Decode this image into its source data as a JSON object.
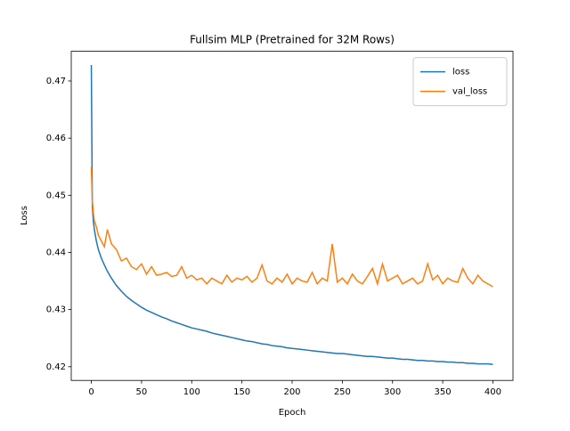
{
  "chart_data": {
    "type": "line",
    "title": "Fullsim MLP (Pretrained for 32M Rows)",
    "x_label": "Epoch",
    "y_label": "Loss",
    "x": [
      0,
      1,
      2,
      3,
      5,
      7,
      10,
      13,
      16,
      20,
      25,
      30,
      35,
      40,
      45,
      50,
      55,
      60,
      65,
      70,
      75,
      80,
      85,
      90,
      95,
      100,
      105,
      110,
      115,
      120,
      125,
      130,
      135,
      140,
      145,
      150,
      155,
      160,
      165,
      170,
      175,
      180,
      185,
      190,
      195,
      200,
      205,
      210,
      215,
      220,
      225,
      230,
      235,
      240,
      245,
      250,
      255,
      260,
      265,
      270,
      275,
      280,
      285,
      290,
      295,
      300,
      305,
      310,
      315,
      320,
      325,
      330,
      335,
      340,
      345,
      350,
      355,
      360,
      365,
      370,
      375,
      380,
      385,
      390,
      395,
      400
    ],
    "series": [
      {
        "name": "loss",
        "color": "#1f77b4",
        "values": [
          0.4728,
          0.448,
          0.4455,
          0.444,
          0.442,
          0.4405,
          0.439,
          0.4378,
          0.4367,
          0.4355,
          0.4342,
          0.4332,
          0.4323,
          0.4316,
          0.431,
          0.4304,
          0.4299,
          0.4295,
          0.4291,
          0.4287,
          0.4284,
          0.428,
          0.4277,
          0.4274,
          0.4271,
          0.4268,
          0.4266,
          0.4264,
          0.4262,
          0.4259,
          0.4257,
          0.4255,
          0.4253,
          0.4251,
          0.4249,
          0.4247,
          0.4245,
          0.4244,
          0.4242,
          0.424,
          0.4239,
          0.4237,
          0.4236,
          0.4235,
          0.4233,
          0.4232,
          0.4231,
          0.423,
          0.4229,
          0.4228,
          0.4227,
          0.4226,
          0.4225,
          0.4224,
          0.4223,
          0.4223,
          0.4222,
          0.4221,
          0.422,
          0.4219,
          0.4218,
          0.4218,
          0.4217,
          0.4216,
          0.4215,
          0.4215,
          0.4214,
          0.4213,
          0.4213,
          0.4212,
          0.4211,
          0.4211,
          0.421,
          0.421,
          0.4209,
          0.4209,
          0.4208,
          0.4208,
          0.4207,
          0.4207,
          0.4206,
          0.4206,
          0.4205,
          0.4205,
          0.4205,
          0.4204
        ]
      },
      {
        "name": "val_loss",
        "color": "#ff7f0e",
        "values": [
          0.455,
          0.449,
          0.447,
          0.4455,
          0.4445,
          0.443,
          0.442,
          0.441,
          0.444,
          0.4415,
          0.4405,
          0.4385,
          0.439,
          0.4375,
          0.437,
          0.438,
          0.4362,
          0.4375,
          0.436,
          0.4362,
          0.4365,
          0.4358,
          0.436,
          0.4375,
          0.4355,
          0.436,
          0.4352,
          0.4355,
          0.4345,
          0.4355,
          0.435,
          0.4345,
          0.436,
          0.4348,
          0.4355,
          0.4352,
          0.4358,
          0.4348,
          0.4355,
          0.4378,
          0.435,
          0.4345,
          0.4355,
          0.4348,
          0.4362,
          0.4345,
          0.4355,
          0.435,
          0.4348,
          0.4365,
          0.4345,
          0.4355,
          0.435,
          0.4415,
          0.4348,
          0.4355,
          0.4345,
          0.4362,
          0.435,
          0.4345,
          0.4358,
          0.4372,
          0.4345,
          0.438,
          0.435,
          0.4355,
          0.436,
          0.4345,
          0.435,
          0.4355,
          0.4345,
          0.435,
          0.438,
          0.4352,
          0.436,
          0.4345,
          0.4355,
          0.435,
          0.4348,
          0.4372,
          0.4355,
          0.4345,
          0.436,
          0.435,
          0.4345,
          0.434
        ]
      }
    ],
    "xlim": [
      -20,
      420
    ],
    "xticks": [
      0,
      50,
      100,
      150,
      200,
      250,
      300,
      350,
      400
    ],
    "ylim": [
      0.4176,
      0.4752
    ],
    "yticks": [
      0.42,
      0.43,
      0.44,
      0.45,
      0.46,
      0.47
    ],
    "legend": "upper right",
    "grid": false
  }
}
